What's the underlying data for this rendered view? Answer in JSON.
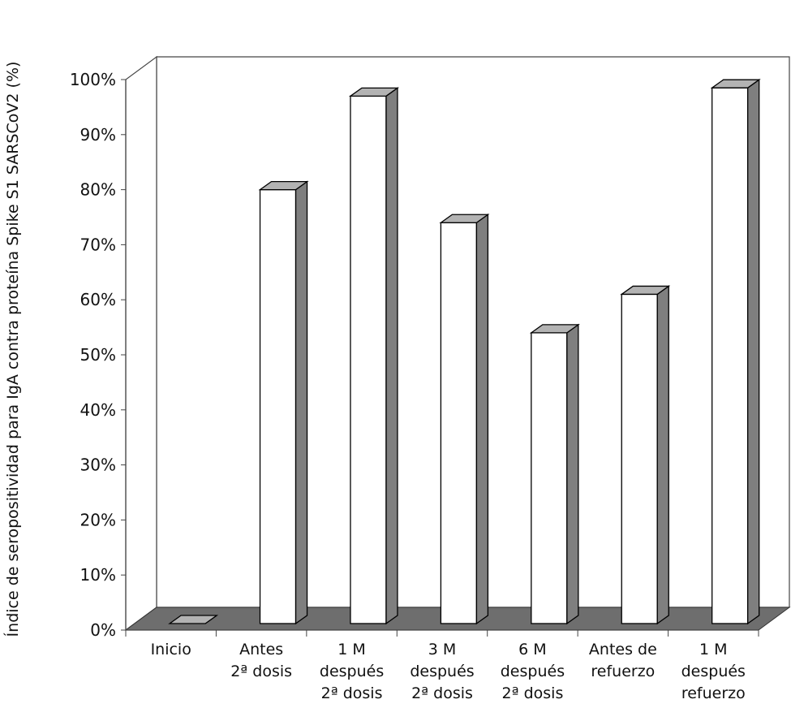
{
  "chart_data": {
    "type": "bar",
    "style": "3d-column",
    "title": "",
    "xlabel": "",
    "ylabel": "Índice de seropositividad para IgA contra proteína Spike S1 SARSCoV2  (%)",
    "ylim": [
      0,
      100
    ],
    "yticks": [
      "0%",
      "10%",
      "20%",
      "30%",
      "40%",
      "50%",
      "60%",
      "70%",
      "80%",
      "90%",
      "100%"
    ],
    "categories": [
      [
        "Inicio"
      ],
      [
        "Antes",
        "2ª dosis"
      ],
      [
        "1 M",
        "después",
        "2ª dosis"
      ],
      [
        "3 M",
        "después",
        "2ª dosis"
      ],
      [
        "6 M",
        "después",
        "2ª dosis"
      ],
      [
        "Antes de",
        "refuerzo"
      ],
      [
        "1 M",
        "después",
        "refuerzo"
      ]
    ],
    "values": [
      0,
      80,
      97,
      74,
      54,
      61,
      98.5
    ],
    "grid": false,
    "legend": "none",
    "colors": {
      "bar_front": "#ffffff",
      "bar_side": "#7f7f7f",
      "bar_top": "#b3b3b3",
      "floor": "#6e6e6e",
      "walls": "#ffffff",
      "outline": "#000000"
    }
  }
}
